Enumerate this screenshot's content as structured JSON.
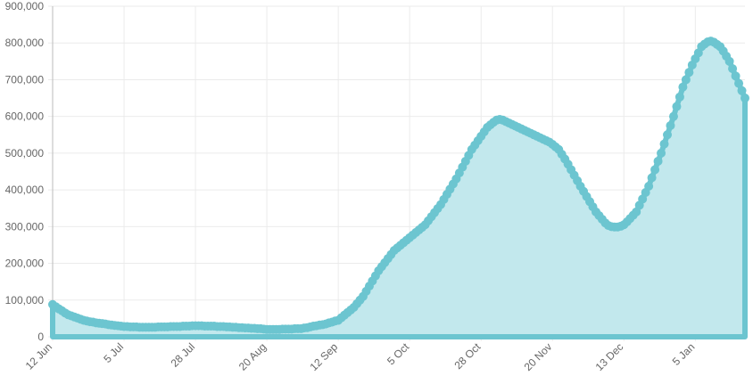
{
  "chart_data": {
    "type": "area",
    "categories": [
      "12 Jun",
      null,
      null,
      null,
      null,
      null,
      null,
      null,
      null,
      null,
      null,
      null,
      null,
      null,
      null,
      null,
      null,
      null,
      null,
      null,
      null,
      null,
      null,
      "5 Jul",
      null,
      null,
      null,
      null,
      null,
      null,
      null,
      null,
      null,
      null,
      null,
      null,
      null,
      null,
      null,
      null,
      null,
      null,
      null,
      null,
      null,
      null,
      "28 Jul",
      null,
      null,
      null,
      null,
      null,
      null,
      null,
      null,
      null,
      null,
      null,
      null,
      null,
      null,
      null,
      null,
      null,
      null,
      null,
      null,
      null,
      null,
      "20 Aug",
      null,
      null,
      null,
      null,
      null,
      null,
      null,
      null,
      null,
      null,
      null,
      null,
      null,
      null,
      null,
      null,
      null,
      null,
      null,
      null,
      null,
      null,
      "12 Sep",
      null,
      null,
      null,
      null,
      null,
      null,
      null,
      null,
      null,
      null,
      null,
      null,
      null,
      null,
      null,
      null,
      null,
      null,
      null,
      null,
      null,
      null,
      "5 Oct",
      null,
      null,
      null,
      null,
      null,
      null,
      null,
      null,
      null,
      null,
      null,
      null,
      null,
      null,
      null,
      null,
      null,
      null,
      null,
      null,
      null,
      null,
      "28 Oct",
      null,
      null,
      null,
      null,
      null,
      null,
      null,
      null,
      null,
      null,
      null,
      null,
      null,
      null,
      null,
      null,
      null,
      null,
      null,
      null,
      null,
      null,
      "20 Nov",
      null,
      null,
      null,
      null,
      null,
      null,
      null,
      null,
      null,
      null,
      null,
      null,
      null,
      null,
      null,
      null,
      null,
      null,
      null,
      null,
      null,
      null,
      "13 Dec",
      null,
      null,
      null,
      null,
      null,
      null,
      null,
      null,
      null,
      null,
      null,
      null,
      null,
      null,
      null,
      null,
      null,
      null,
      null,
      null,
      null,
      null,
      "5 Jan",
      null,
      null,
      null,
      null,
      null,
      null,
      null,
      null,
      null,
      null,
      null,
      null,
      null,
      null,
      null,
      null
    ],
    "series": [
      {
        "color": "#6cc5d0",
        "fill": "#c2e8ed",
        "values": [
          88000,
          82000,
          76000,
          71000,
          65000,
          60000,
          57000,
          54000,
          51000,
          48000,
          45000,
          43000,
          41000,
          40000,
          38000,
          37000,
          36000,
          35000,
          33000,
          32000,
          31000,
          30000,
          29000,
          28000,
          28000,
          27000,
          27000,
          27000,
          26000,
          26000,
          26000,
          26000,
          26000,
          26000,
          27000,
          27000,
          27000,
          27000,
          28000,
          28000,
          28000,
          28000,
          29000,
          29000,
          29000,
          30000,
          30000,
          30000,
          30000,
          29000,
          29000,
          29000,
          29000,
          28000,
          28000,
          28000,
          27000,
          27000,
          26000,
          26000,
          25000,
          25000,
          24000,
          24000,
          23000,
          23000,
          22000,
          22000,
          21000,
          20000,
          20000,
          20000,
          20000,
          20000,
          21000,
          21000,
          21000,
          21000,
          22000,
          22000,
          22000,
          24000,
          25000,
          27000,
          29000,
          30000,
          32000,
          33000,
          35000,
          38000,
          40000,
          43000,
          45000,
          52000,
          59000,
          66000,
          73000,
          80000,
          90000,
          100000,
          110000,
          124000,
          138000,
          152000,
          166000,
          180000,
          191000,
          202000,
          213000,
          224000,
          235000,
          242000,
          249000,
          256000,
          263000,
          270000,
          277000,
          284000,
          291000,
          298000,
          305000,
          316000,
          327000,
          338000,
          349000,
          360000,
          374000,
          388000,
          402000,
          416000,
          430000,
          446000,
          462000,
          478000,
          494000,
          510000,
          522000,
          534000,
          546000,
          558000,
          570000,
          577000,
          584000,
          590000,
          592000,
          590000,
          586000,
          582000,
          578000,
          574000,
          570000,
          566000,
          562000,
          558000,
          554000,
          550000,
          546000,
          542000,
          538000,
          534000,
          530000,
          524000,
          517000,
          510000,
          497000,
          484000,
          470000,
          455000,
          440000,
          425000,
          410000,
          396000,
          382000,
          368000,
          354000,
          340000,
          330000,
          320000,
          310000,
          303000,
          300000,
          299000,
          299000,
          301000,
          305000,
          313000,
          322000,
          331000,
          340000,
          358000,
          375000,
          393000,
          410000,
          433000,
          455000,
          478000,
          500000,
          525000,
          550000,
          575000,
          600000,
          627000,
          653000,
          680000,
          700000,
          720000,
          740000,
          757000,
          773000,
          790000,
          797000,
          803000,
          805000,
          802000,
          796000,
          790000,
          778000,
          764000,
          750000,
          730000,
          710000,
          690000,
          670000,
          650000
        ]
      }
    ],
    "ylim": [
      0,
      900000
    ],
    "yticks": [
      0,
      {
        "value": 100000,
        "label": "100,000"
      },
      {
        "value": 200000,
        "label": "200,000"
      },
      {
        "value": 300000,
        "label": "300,000"
      },
      {
        "value": 400000,
        "label": "400,000"
      },
      {
        "value": 500000,
        "label": "500,000"
      },
      {
        "value": 600000,
        "label": "600,000"
      },
      {
        "value": 700000,
        "label": "700,000"
      },
      {
        "value": 800000,
        "label": "800,000"
      },
      {
        "value": 900000,
        "label": "900,000"
      }
    ],
    "grid": true
  }
}
